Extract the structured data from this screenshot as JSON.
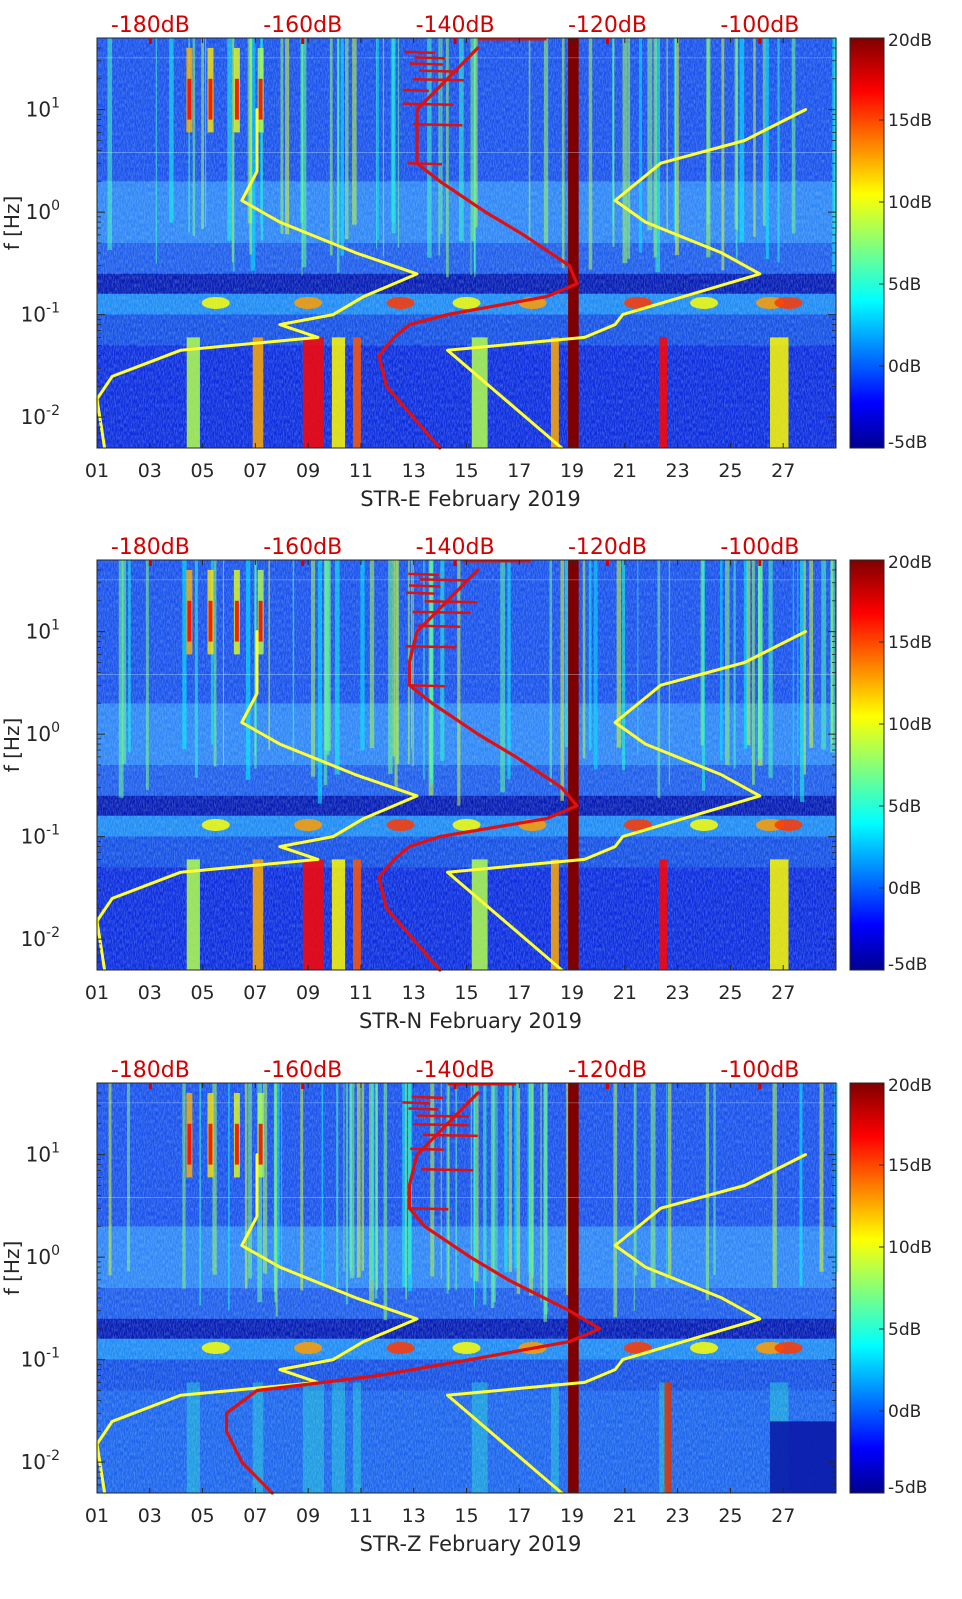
{
  "figure": {
    "panels": [
      "STR-E February 2019",
      "STR-N February 2019",
      "STR-Z February 2019"
    ]
  },
  "chart_data": [
    {
      "type": "heatmap",
      "title": "",
      "xlabel": "STR-E February 2019",
      "ylabel": "f [Hz]",
      "x_ticks": [
        "01",
        "03",
        "05",
        "07",
        "09",
        "11",
        "13",
        "15",
        "17",
        "19",
        "21",
        "23",
        "25",
        "27"
      ],
      "x_range_days": [
        1,
        29
      ],
      "y_scale": "log",
      "y_range_hz": [
        0.005,
        50
      ],
      "y_ticks": [
        {
          "value": 0.01,
          "base": "10",
          "exp": "-2"
        },
        {
          "value": 0.1,
          "base": "10",
          "exp": "-1"
        },
        {
          "value": 1,
          "base": "10",
          "exp": "0"
        },
        {
          "value": 10,
          "base": "10",
          "exp": "1"
        }
      ],
      "top_axis_ticks": [
        "-180dB",
        "-160dB",
        "-140dB",
        "-120dB",
        "-100dB"
      ],
      "top_axis_range_db": [
        -187,
        -90
      ],
      "colorbar": {
        "ticks": [
          "20dB",
          "15dB",
          "10dB",
          "5dB",
          "0dB",
          "-5dB"
        ],
        "range_db": [
          -5,
          20
        ],
        "colormap": "jet"
      },
      "series": [
        {
          "color": "#ffff33",
          "label": "Noise model curve (yellow), left branch",
          "points_freq_db": [
            [
              0.005,
              -186
            ],
            [
              0.015,
              -187
            ],
            [
              0.025,
              -185
            ],
            [
              0.045,
              -176
            ],
            [
              0.06,
              -158
            ],
            [
              0.08,
              -163
            ],
            [
              0.1,
              -156
            ],
            [
              0.15,
              -152
            ],
            [
              0.25,
              -145
            ],
            [
              0.4,
              -153
            ],
            [
              0.8,
              -163
            ],
            [
              1.3,
              -168
            ],
            [
              2.5,
              -166
            ],
            [
              10,
              -166
            ]
          ]
        },
        {
          "color": "#ffff33",
          "label": "Noise model curve (yellow), right branch",
          "points_freq_db": [
            [
              0.005,
              -126
            ],
            [
              0.045,
              -141
            ],
            [
              0.06,
              -123
            ],
            [
              0.08,
              -119
            ],
            [
              0.1,
              -118
            ],
            [
              0.15,
              -110
            ],
            [
              0.25,
              -100
            ],
            [
              0.4,
              -105
            ],
            [
              0.8,
              -115
            ],
            [
              1.3,
              -119
            ],
            [
              3,
              -113
            ],
            [
              5,
              -102
            ],
            [
              10,
              -94
            ]
          ]
        },
        {
          "color": "#e01010",
          "label": "Station noise curve (red)",
          "points_freq_db": [
            [
              0.005,
              -142
            ],
            [
              0.02,
              -149
            ],
            [
              0.04,
              -150
            ],
            [
              0.06,
              -148
            ],
            [
              0.08,
              -146
            ],
            [
              0.1,
              -141
            ],
            [
              0.15,
              -128
            ],
            [
              0.2,
              -124
            ],
            [
              0.3,
              -125
            ],
            [
              0.6,
              -131
            ],
            [
              1.0,
              -136
            ],
            [
              2.0,
              -142
            ],
            [
              3.0,
              -145
            ],
            [
              5,
              -145
            ],
            [
              10,
              -145
            ],
            [
              20,
              -141
            ],
            [
              40,
              -137
            ]
          ]
        }
      ]
    },
    {
      "type": "heatmap",
      "title": "",
      "xlabel": "STR-N February 2019",
      "ylabel": "f [Hz]",
      "x_ticks": [
        "01",
        "03",
        "05",
        "07",
        "09",
        "11",
        "13",
        "15",
        "17",
        "19",
        "21",
        "23",
        "25",
        "27"
      ],
      "x_range_days": [
        1,
        29
      ],
      "y_scale": "log",
      "y_range_hz": [
        0.005,
        50
      ],
      "y_ticks": [
        {
          "value": 0.01,
          "base": "10",
          "exp": "-2"
        },
        {
          "value": 0.1,
          "base": "10",
          "exp": "-1"
        },
        {
          "value": 1,
          "base": "10",
          "exp": "0"
        },
        {
          "value": 10,
          "base": "10",
          "exp": "1"
        }
      ],
      "top_axis_ticks": [
        "-180dB",
        "-160dB",
        "-140dB",
        "-120dB",
        "-100dB"
      ],
      "top_axis_range_db": [
        -187,
        -90
      ],
      "colorbar": {
        "ticks": [
          "20dB",
          "15dB",
          "10dB",
          "5dB",
          "0dB",
          "-5dB"
        ],
        "range_db": [
          -5,
          20
        ],
        "colormap": "jet"
      },
      "series": [
        {
          "color": "#ffff33",
          "label": "Noise model curve (yellow), left branch",
          "points_freq_db": [
            [
              0.005,
              -186
            ],
            [
              0.015,
              -187
            ],
            [
              0.025,
              -185
            ],
            [
              0.045,
              -176
            ],
            [
              0.06,
              -158
            ],
            [
              0.08,
              -163
            ],
            [
              0.1,
              -156
            ],
            [
              0.15,
              -152
            ],
            [
              0.25,
              -145
            ],
            [
              0.4,
              -153
            ],
            [
              0.8,
              -163
            ],
            [
              1.3,
              -168
            ],
            [
              2.5,
              -166
            ],
            [
              10,
              -166
            ]
          ]
        },
        {
          "color": "#ffff33",
          "label": "Noise model curve (yellow), right branch",
          "points_freq_db": [
            [
              0.005,
              -126
            ],
            [
              0.045,
              -141
            ],
            [
              0.06,
              -123
            ],
            [
              0.08,
              -119
            ],
            [
              0.1,
              -118
            ],
            [
              0.15,
              -110
            ],
            [
              0.25,
              -100
            ],
            [
              0.4,
              -105
            ],
            [
              0.8,
              -115
            ],
            [
              1.3,
              -119
            ],
            [
              3,
              -113
            ],
            [
              5,
              -102
            ],
            [
              10,
              -94
            ]
          ]
        },
        {
          "color": "#e01010",
          "label": "Station noise curve (red)",
          "points_freq_db": [
            [
              0.005,
              -142
            ],
            [
              0.02,
              -149
            ],
            [
              0.04,
              -150
            ],
            [
              0.06,
              -148
            ],
            [
              0.08,
              -146
            ],
            [
              0.1,
              -142
            ],
            [
              0.15,
              -128
            ],
            [
              0.2,
              -124
            ],
            [
              0.3,
              -126
            ],
            [
              0.6,
              -132
            ],
            [
              1.0,
              -137
            ],
            [
              2.0,
              -143
            ],
            [
              3.0,
              -146
            ],
            [
              5,
              -146
            ],
            [
              10,
              -145
            ],
            [
              20,
              -141
            ],
            [
              40,
              -137
            ]
          ]
        }
      ]
    },
    {
      "type": "heatmap",
      "title": "",
      "xlabel": "STR-Z February 2019",
      "ylabel": "f [Hz]",
      "x_ticks": [
        "01",
        "03",
        "05",
        "07",
        "09",
        "11",
        "13",
        "15",
        "17",
        "19",
        "21",
        "23",
        "25",
        "27"
      ],
      "x_range_days": [
        1,
        29
      ],
      "y_scale": "log",
      "y_range_hz": [
        0.005,
        50
      ],
      "y_ticks": [
        {
          "value": 0.01,
          "base": "10",
          "exp": "-2"
        },
        {
          "value": 0.1,
          "base": "10",
          "exp": "-1"
        },
        {
          "value": 1,
          "base": "10",
          "exp": "0"
        },
        {
          "value": 10,
          "base": "10",
          "exp": "1"
        }
      ],
      "top_axis_ticks": [
        "-180dB",
        "-160dB",
        "-140dB",
        "-120dB",
        "-100dB"
      ],
      "top_axis_range_db": [
        -187,
        -90
      ],
      "colorbar": {
        "ticks": [
          "20dB",
          "15dB",
          "10dB",
          "5dB",
          "0dB",
          "-5dB"
        ],
        "range_db": [
          -5,
          20
        ],
        "colormap": "jet"
      },
      "series": [
        {
          "color": "#ffff33",
          "label": "Noise model curve (yellow), left branch",
          "points_freq_db": [
            [
              0.005,
              -186
            ],
            [
              0.015,
              -187
            ],
            [
              0.025,
              -185
            ],
            [
              0.045,
              -176
            ],
            [
              0.06,
              -158
            ],
            [
              0.08,
              -163
            ],
            [
              0.1,
              -156
            ],
            [
              0.15,
              -152
            ],
            [
              0.25,
              -145
            ],
            [
              0.4,
              -153
            ],
            [
              0.8,
              -163
            ],
            [
              1.3,
              -168
            ],
            [
              2.5,
              -166
            ],
            [
              10,
              -166
            ]
          ]
        },
        {
          "color": "#ffff33",
          "label": "Noise model curve (yellow), right branch",
          "points_freq_db": [
            [
              0.005,
              -126
            ],
            [
              0.045,
              -141
            ],
            [
              0.06,
              -123
            ],
            [
              0.08,
              -119
            ],
            [
              0.1,
              -118
            ],
            [
              0.15,
              -110
            ],
            [
              0.25,
              -100
            ],
            [
              0.4,
              -105
            ],
            [
              0.8,
              -115
            ],
            [
              1.3,
              -119
            ],
            [
              3,
              -113
            ],
            [
              5,
              -102
            ],
            [
              10,
              -94
            ]
          ]
        },
        {
          "color": "#e01010",
          "label": "Station noise curve (red)",
          "points_freq_db": [
            [
              0.005,
              -164
            ],
            [
              0.01,
              -168
            ],
            [
              0.02,
              -170
            ],
            [
              0.03,
              -170
            ],
            [
              0.05,
              -166
            ],
            [
              0.07,
              -150
            ],
            [
              0.1,
              -138
            ],
            [
              0.15,
              -125
            ],
            [
              0.2,
              -121
            ],
            [
              0.3,
              -125
            ],
            [
              0.6,
              -133
            ],
            [
              1.0,
              -138
            ],
            [
              2.0,
              -144
            ],
            [
              3.0,
              -146
            ],
            [
              5,
              -146
            ],
            [
              10,
              -145
            ],
            [
              20,
              -141
            ],
            [
              40,
              -137
            ]
          ]
        }
      ]
    }
  ]
}
